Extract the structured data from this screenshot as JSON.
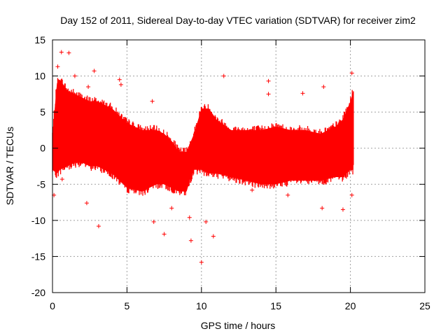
{
  "chart_data": {
    "type": "scatter",
    "title": "Day 152 of 2011, Sidereal Day-to-day VTEC variation (SDTVAR) for receiver zim2",
    "xlabel": "GPS time / hours",
    "ylabel": "SDTVAR / TECUs",
    "xlim": [
      0,
      25
    ],
    "ylim": [
      -20,
      15
    ],
    "xticks": [
      0,
      5,
      10,
      15,
      20,
      25
    ],
    "yticks": [
      -20,
      -15,
      -10,
      -5,
      0,
      5,
      10,
      15
    ],
    "xtick_labels": [
      "0",
      "5",
      "10",
      "15",
      "20",
      "25"
    ],
    "ytick_labels": [
      "-20",
      "-15",
      "-10",
      "-5",
      "0",
      "5",
      "10",
      "15"
    ],
    "grid": true,
    "legend": "none",
    "marker": "+",
    "color": "#ff0000",
    "envelope": {
      "description": "Dense band of SDTVAR samples with error bars, approximate upper and lower envelope",
      "x": [
        0.0,
        0.3,
        0.5,
        1.0,
        1.5,
        2.0,
        2.5,
        3.0,
        4.0,
        5.0,
        6.0,
        7.0,
        7.5,
        8.0,
        8.5,
        9.0,
        9.3,
        9.5,
        10.0,
        10.5,
        11.0,
        12.0,
        13.0,
        14.0,
        15.0,
        16.0,
        17.0,
        18.0,
        19.0,
        19.5,
        20.0,
        20.2
      ],
      "upper": [
        2.0,
        9.0,
        9.5,
        8.0,
        7.5,
        7.0,
        6.5,
        6.5,
        5.5,
        3.5,
        2.5,
        2.5,
        2.0,
        1.0,
        -0.5,
        -0.5,
        1.0,
        2.0,
        5.5,
        5.5,
        4.0,
        2.5,
        2.5,
        2.5,
        3.0,
        2.5,
        2.5,
        2.0,
        3.0,
        4.0,
        6.5,
        8.0
      ],
      "lower": [
        -3.0,
        -3.5,
        -3.0,
        -2.5,
        -2.0,
        -2.0,
        -2.5,
        -2.5,
        -3.5,
        -5.5,
        -6.0,
        -5.0,
        -5.0,
        -5.5,
        -6.0,
        -6.0,
        -4.0,
        -3.0,
        -3.0,
        -3.5,
        -3.5,
        -4.0,
        -4.5,
        -5.0,
        -5.0,
        -4.5,
        -4.5,
        -4.5,
        -4.0,
        -4.0,
        -3.0,
        -3.0
      ]
    },
    "outliers": [
      {
        "x": 0.6,
        "y": 13.3
      },
      {
        "x": 1.1,
        "y": 13.2
      },
      {
        "x": 0.35,
        "y": 11.3
      },
      {
        "x": 1.5,
        "y": 10.0
      },
      {
        "x": 2.4,
        "y": 8.5
      },
      {
        "x": 2.8,
        "y": 10.7
      },
      {
        "x": 4.5,
        "y": 9.5
      },
      {
        "x": 4.6,
        "y": 8.8
      },
      {
        "x": 6.7,
        "y": 6.5
      },
      {
        "x": 0.65,
        "y": -4.3
      },
      {
        "x": 2.3,
        "y": -7.6
      },
      {
        "x": 3.1,
        "y": -10.8
      },
      {
        "x": 6.8,
        "y": -10.2
      },
      {
        "x": 7.5,
        "y": -11.9
      },
      {
        "x": 8.0,
        "y": -8.3
      },
      {
        "x": 9.2,
        "y": -9.6
      },
      {
        "x": 9.3,
        "y": -12.8
      },
      {
        "x": 10.0,
        "y": -15.8
      },
      {
        "x": 10.3,
        "y": -10.2
      },
      {
        "x": 10.8,
        "y": -12.2
      },
      {
        "x": 11.5,
        "y": 10.0
      },
      {
        "x": 14.5,
        "y": 9.3
      },
      {
        "x": 14.5,
        "y": 7.5
      },
      {
        "x": 16.8,
        "y": 7.6
      },
      {
        "x": 18.1,
        "y": -8.3
      },
      {
        "x": 18.2,
        "y": 8.5
      },
      {
        "x": 19.5,
        "y": -8.5
      },
      {
        "x": 20.1,
        "y": 10.4
      },
      {
        "x": 20.1,
        "y": -6.5
      },
      {
        "x": 0.1,
        "y": -6.5
      },
      {
        "x": 13.4,
        "y": -5.8
      },
      {
        "x": 15.8,
        "y": -6.5
      }
    ]
  }
}
